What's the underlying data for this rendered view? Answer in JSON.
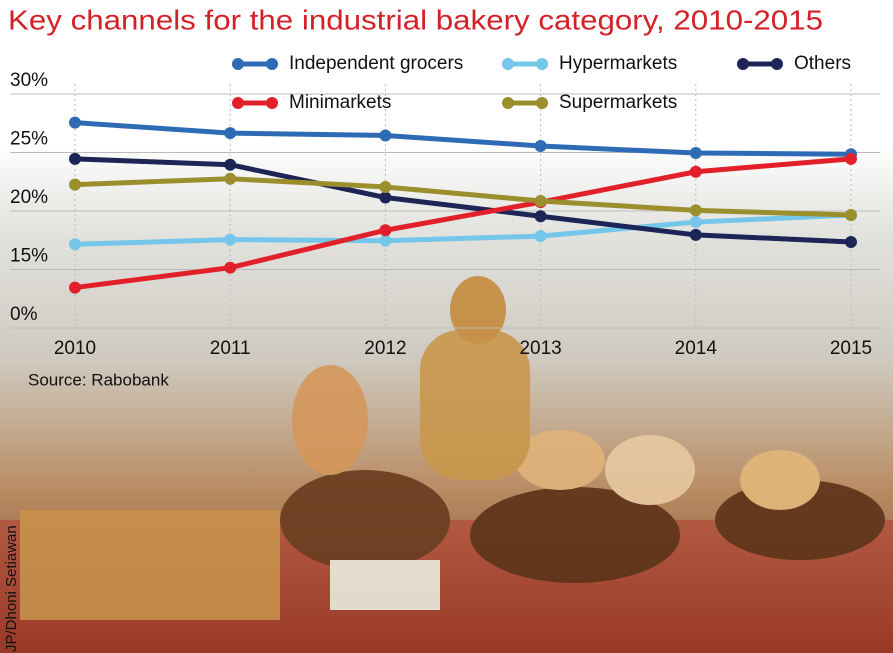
{
  "chart_data": {
    "type": "line",
    "title": "Key channels for the industrial bakery category, 2010-2015",
    "source": "Source: Rabobank",
    "credit": "JP/Dhoni Setiawan",
    "categories": [
      "2010",
      "2011",
      "2012",
      "2013",
      "2014",
      "2015"
    ],
    "series": [
      {
        "name": "Independent grocers",
        "color": "#2f6bb5",
        "values": [
          26.7,
          25.8,
          25.6,
          24.7,
          24.1,
          24.0
        ]
      },
      {
        "name": "Hypermarkets",
        "color": "#74c6ea",
        "values": [
          16.3,
          16.7,
          16.6,
          17.0,
          18.2,
          18.8
        ]
      },
      {
        "name": "Others",
        "color": "#1c2556",
        "values": [
          23.6,
          23.1,
          20.3,
          18.7,
          17.1,
          16.5
        ]
      },
      {
        "name": "Minimarkets",
        "color": "#e2202a",
        "values": [
          7.8,
          12.9,
          17.5,
          19.9,
          22.5,
          23.6
        ]
      },
      {
        "name": "Supermarkets",
        "color": "#9a8f2c",
        "values": [
          21.4,
          21.9,
          21.2,
          20.0,
          19.2,
          18.8
        ]
      }
    ],
    "ylim": [
      0,
      30
    ],
    "yticks": [
      {
        "value": 0,
        "label": "0%"
      },
      {
        "value": 15,
        "label": "15%"
      },
      {
        "value": 20,
        "label": "20%"
      },
      {
        "value": 25,
        "label": "25%"
      },
      {
        "value": 30,
        "label": "30%"
      }
    ],
    "grid": true
  }
}
